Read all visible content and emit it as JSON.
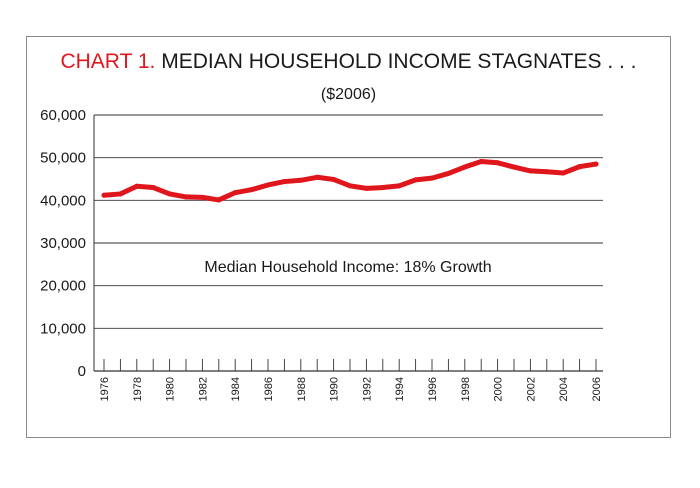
{
  "colors": {
    "title_prefix": "#e0161d",
    "line": "#e0161d",
    "grid": "#333333",
    "text": "#1a1a1a"
  },
  "chart_data": {
    "type": "line",
    "title_prefix": "CHART 1.",
    "title": "MEDIAN HOUSEHOLD INCOME STAGNATES . . .",
    "subtitle": "($2006)",
    "annotation": "Median Household Income: 18% Growth",
    "xlabel": "",
    "ylabel": "",
    "ylim": [
      0,
      60000
    ],
    "yticks": [
      0,
      10000,
      20000,
      30000,
      40000,
      50000,
      60000
    ],
    "ytick_labels": [
      "0",
      "10,000",
      "20,000",
      "30,000",
      "40,000",
      "50,000",
      "60,000"
    ],
    "xlim": [
      1976,
      2006
    ],
    "xtick_labels": [
      "1976",
      "1978",
      "1980",
      "1982",
      "1984",
      "1986",
      "1988",
      "1990",
      "1992",
      "1994",
      "1996",
      "1998",
      "2000",
      "2002",
      "2004",
      "2006"
    ],
    "grid": "horizontal",
    "x": [
      1976,
      1977,
      1978,
      1979,
      1980,
      1981,
      1982,
      1983,
      1984,
      1985,
      1986,
      1987,
      1988,
      1989,
      1990,
      1991,
      1992,
      1993,
      1994,
      1995,
      1996,
      1997,
      1998,
      1999,
      2000,
      2001,
      2002,
      2003,
      2004,
      2005,
      2006
    ],
    "series": [
      {
        "values": [
          41200,
          41500,
          43300,
          43000,
          41500,
          40800,
          40700,
          40100,
          41800,
          42500,
          43600,
          44400,
          44700,
          45400,
          44900,
          43400,
          42800,
          43000,
          43400,
          44800,
          45200,
          46300,
          47800,
          49100,
          48800,
          47800,
          46900,
          46700,
          46400,
          47900,
          48500
        ]
      }
    ]
  }
}
